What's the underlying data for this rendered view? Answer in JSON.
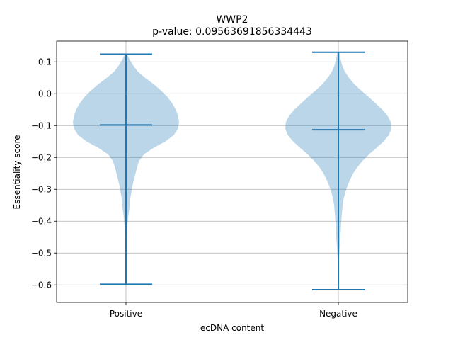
{
  "chart_data": {
    "type": "violin",
    "title": "WWP2",
    "subtitle": "p-value: 0.09563691856334443",
    "xlabel": "ecDNA content",
    "ylabel": "Essentiality score",
    "categories": [
      "Positive",
      "Negative"
    ],
    "ylim": [
      -0.655,
      0.165
    ],
    "yticks": [
      0.1,
      0.0,
      -0.1,
      -0.2,
      -0.3,
      -0.4,
      -0.5,
      -0.6
    ],
    "ytick_labels": [
      "0.1",
      "0.0",
      "−0.1",
      "−0.2",
      "−0.3",
      "−0.4",
      "−0.5",
      "−0.6"
    ],
    "grid": true,
    "fill_color": "#1f77b4",
    "fill_opacity": 0.3,
    "line_color": "#1f77b4",
    "violins": [
      {
        "category": "Positive",
        "min": -0.598,
        "max": 0.124,
        "median": -0.098,
        "density": [
          [
            0.124,
            0.02
          ],
          [
            0.11,
            0.06
          ],
          [
            0.09,
            0.13
          ],
          [
            0.07,
            0.22
          ],
          [
            0.05,
            0.36
          ],
          [
            0.03,
            0.52
          ],
          [
            0.01,
            0.66
          ],
          [
            -0.01,
            0.78
          ],
          [
            -0.03,
            0.87
          ],
          [
            -0.05,
            0.94
          ],
          [
            -0.07,
            0.98
          ],
          [
            -0.09,
            1.0
          ],
          [
            -0.11,
            0.98
          ],
          [
            -0.13,
            0.9
          ],
          [
            -0.15,
            0.74
          ],
          [
            -0.17,
            0.52
          ],
          [
            -0.19,
            0.34
          ],
          [
            -0.21,
            0.25
          ],
          [
            -0.23,
            0.21
          ],
          [
            -0.25,
            0.18
          ],
          [
            -0.27,
            0.15
          ],
          [
            -0.29,
            0.12
          ],
          [
            -0.31,
            0.1
          ],
          [
            -0.33,
            0.08
          ],
          [
            -0.35,
            0.07
          ],
          [
            -0.37,
            0.055
          ],
          [
            -0.39,
            0.04
          ],
          [
            -0.41,
            0.03
          ],
          [
            -0.43,
            0.02
          ],
          [
            -0.45,
            0.012
          ],
          [
            -0.47,
            0.008
          ],
          [
            -0.5,
            0.005
          ],
          [
            -0.55,
            0.004
          ],
          [
            -0.598,
            0.003
          ]
        ]
      },
      {
        "category": "Negative",
        "min": -0.615,
        "max": 0.13,
        "median": -0.113,
        "density": [
          [
            0.13,
            0.02
          ],
          [
            0.11,
            0.04
          ],
          [
            0.09,
            0.07
          ],
          [
            0.07,
            0.12
          ],
          [
            0.05,
            0.2
          ],
          [
            0.03,
            0.3
          ],
          [
            0.01,
            0.43
          ],
          [
            -0.01,
            0.57
          ],
          [
            -0.03,
            0.7
          ],
          [
            -0.05,
            0.83
          ],
          [
            -0.07,
            0.93
          ],
          [
            -0.09,
            0.99
          ],
          [
            -0.11,
            1.0
          ],
          [
            -0.13,
            0.95
          ],
          [
            -0.15,
            0.85
          ],
          [
            -0.17,
            0.72
          ],
          [
            -0.19,
            0.58
          ],
          [
            -0.21,
            0.46
          ],
          [
            -0.23,
            0.36
          ],
          [
            -0.25,
            0.28
          ],
          [
            -0.27,
            0.22
          ],
          [
            -0.29,
            0.17
          ],
          [
            -0.31,
            0.13
          ],
          [
            -0.33,
            0.1
          ],
          [
            -0.35,
            0.08
          ],
          [
            -0.37,
            0.07
          ],
          [
            -0.39,
            0.06
          ],
          [
            -0.41,
            0.05
          ],
          [
            -0.43,
            0.045
          ],
          [
            -0.45,
            0.04
          ],
          [
            -0.47,
            0.03
          ],
          [
            -0.49,
            0.022
          ],
          [
            -0.52,
            0.014
          ],
          [
            -0.55,
            0.009
          ],
          [
            -0.58,
            0.006
          ],
          [
            -0.615,
            0.004
          ]
        ]
      }
    ]
  }
}
